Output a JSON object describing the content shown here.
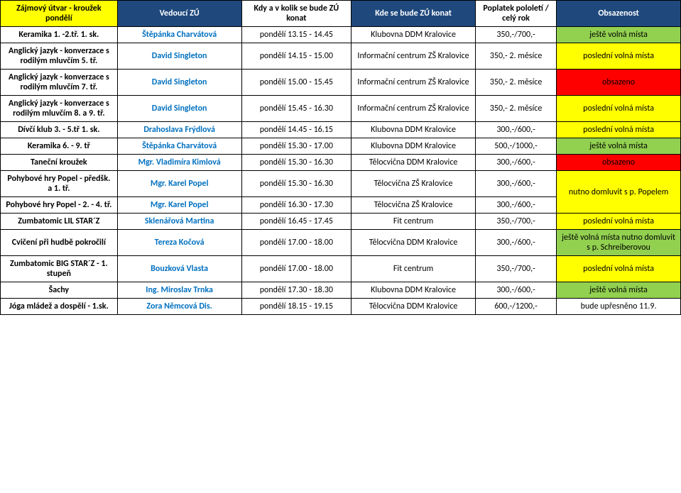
{
  "colors": {
    "yellow": "#ffff00",
    "green": "#92d050",
    "red": "#ff0000",
    "navy": "#1f497d",
    "boldBlue": "#0070c0",
    "black": "#000000",
    "white": "#ffffff"
  },
  "headers": {
    "name": "Zájmový útvar - kroužek pondělí",
    "leader": "Vedoucí ZÚ",
    "when": "Kdy a v kolik se bude ZÚ konat",
    "where": "Kde se bude ZÚ konat",
    "fee": "Poplatek pololetí / celý rok",
    "avail": "Obsazenost"
  },
  "headerStyles": {
    "name": {
      "bg": "#ffff00",
      "color": "#000000",
      "bold": true
    },
    "leader": {
      "bg": "#1f497d",
      "color": "#ffffff",
      "bold": true
    },
    "when": {
      "bg": "#ffffff",
      "color": "#000000",
      "bold": true
    },
    "where": {
      "bg": "#1f497d",
      "color": "#ffffff",
      "bold": true
    },
    "fee": {
      "bg": "#ffffff",
      "color": "#000000",
      "bold": true
    },
    "avail": {
      "bg": "#1f497d",
      "color": "#ffffff",
      "bold": true
    }
  },
  "rows": [
    {
      "name": "Keramika 1. -2.tř. 1. sk.",
      "leader": "Štěpánka Charvátová",
      "when": "pondělí 13.15 - 14.45",
      "where": "Klubovna DDM Kralovice",
      "fee": "350,-/700,-",
      "avail": "ještě volná místa",
      "nameStyle": {
        "bold": true
      },
      "leaderStyle": {
        "color": "#0070c0",
        "bold": true
      },
      "availStyle": {
        "bg": "#92d050"
      },
      "rowspanAvail": 1
    },
    {
      "name": "Anglický jazyk - konverzace s rodilým mluvčím 5. tř.",
      "leader": "David Singleton",
      "when": "pondělí 14.15 - 15.00",
      "where": "Informační centrum ZŠ Kralovice",
      "fee": "350,- 2. měsíce",
      "avail": "poslední volná místa",
      "nameStyle": {
        "bold": true
      },
      "leaderStyle": {
        "color": "#0070c0",
        "bold": true
      },
      "availStyle": {
        "bg": "#ffff00"
      },
      "rowspanAvail": 1
    },
    {
      "name": "Anglický jazyk - konverzace s rodilým mluvčím 7. tř.",
      "leader": "David Singleton",
      "when": "pondělí 15.00 - 15.45",
      "where": "Informační centrum ZŠ Kralovice",
      "fee": "350,- 2. měsíce",
      "avail": "obsazeno",
      "nameStyle": {
        "bold": true
      },
      "leaderStyle": {
        "color": "#0070c0",
        "bold": true
      },
      "availStyle": {
        "bg": "#ff0000"
      },
      "rowspanAvail": 1
    },
    {
      "name": "Anglický jazyk - konverzace s rodilým mluvčím 8. a 9. tř.",
      "leader": "David Singleton",
      "when": "pondělí 15.45 - 16.30",
      "where": "Informační centrum ZŠ Kralovice",
      "fee": "350,- 2. měsíce",
      "avail": "poslední volná místa",
      "nameStyle": {
        "bold": true
      },
      "leaderStyle": {
        "color": "#0070c0",
        "bold": true
      },
      "availStyle": {
        "bg": "#ffff00"
      },
      "rowspanAvail": 1
    },
    {
      "name": "Dívčí klub 3. - 5.tř 1. sk.",
      "leader": "Drahoslava Frýdlová",
      "when": "pondělí 14.45 - 16.15",
      "where": "Klubovna DDM Kralovice",
      "fee": "300,-/600,-",
      "avail": "poslední volná místa",
      "nameStyle": {
        "bold": true
      },
      "leaderStyle": {
        "color": "#0070c0",
        "bold": true
      },
      "availStyle": {
        "bg": "#ffff00"
      },
      "rowspanAvail": 1
    },
    {
      "name": "Keramika 6. - 9. tř",
      "leader": "Štěpánka Charvátová",
      "when": "pondělí 15.30 - 17.00",
      "where": "Klubovna DDM Kralovice",
      "fee": "500,-/1000,-",
      "avail": "ještě volná místa",
      "nameStyle": {
        "bold": true
      },
      "leaderStyle": {
        "color": "#0070c0",
        "bold": true
      },
      "availStyle": {
        "bg": "#92d050"
      },
      "rowspanAvail": 1
    },
    {
      "name": "Taneční kroužek",
      "leader": "Mgr. Vladimíra Kimlová",
      "when": "pondělí 15.30 - 16.30",
      "where": "Tělocvična DDM Kralovice",
      "fee": "300,-/600,-",
      "avail": "obsazeno",
      "nameStyle": {
        "bold": true
      },
      "leaderStyle": {
        "color": "#0070c0",
        "bold": true
      },
      "availStyle": {
        "bg": "#ff0000"
      },
      "rowspanAvail": 1
    },
    {
      "name": "Pohybové hry Popel - předšk. a 1. tř.",
      "leader": "Mgr. Karel Popel",
      "when": "pondělí 15.30 - 16.30",
      "where": "Tělocvična ZŠ Kralovice",
      "fee": "300,-/600,-",
      "avail": "nutno domluvit s  p. Popelem",
      "nameStyle": {
        "bold": true
      },
      "leaderStyle": {
        "color": "#0070c0",
        "bold": true
      },
      "availStyle": {
        "bg": "#ffff00"
      },
      "rowspanAvail": 2
    },
    {
      "name": "Pohybové hry Popel - 2. - 4. tř.",
      "leader": "Mgr. Karel Popel",
      "when": "pondělí 16.30 - 17.30",
      "where": "Tělocvična ZŠ Kralovice",
      "fee": "300,-/600,-",
      "avail": null,
      "nameStyle": {
        "bold": true
      },
      "leaderStyle": {
        "color": "#0070c0",
        "bold": true
      },
      "availStyle": null,
      "rowspanAvail": 0
    },
    {
      "name": "Zumbatomic LIL STAR´Z",
      "leader": "Sklenářová Martina",
      "when": "pondělí 16.45 - 17.45",
      "where": "Fit centrum",
      "fee": "350,-/700,-",
      "avail": "poslední volná místa",
      "nameStyle": {
        "bold": true
      },
      "leaderStyle": {
        "color": "#0070c0",
        "bold": true
      },
      "availStyle": {
        "bg": "#ffff00"
      },
      "rowspanAvail": 1
    },
    {
      "name": "Cvičení při hudbě pokročilí",
      "leader": "Tereza Kočová",
      "when": "pondělí 17.00 - 18.00",
      "where": "Tělocvična DDM Kralovice",
      "fee": "300,-/600,-",
      "avail": "ještě volná místa nutno domluvit s  p. Schreiberovou",
      "nameStyle": {
        "bold": true
      },
      "leaderStyle": {
        "color": "#0070c0",
        "bold": true
      },
      "availStyle": {
        "bg": "#92d050"
      },
      "rowspanAvail": 1
    },
    {
      "name": "Zumbatomic BIG STAR´Z - 1. stupeň",
      "leader": "Bouzková Vlasta",
      "when": "pondělí 17.00 - 18.00",
      "where": "Fit centrum",
      "fee": "350,-/700,-",
      "avail": "poslední volná místa",
      "nameStyle": {
        "bold": true
      },
      "leaderStyle": {
        "color": "#0070c0",
        "bold": true
      },
      "availStyle": {
        "bg": "#ffff00"
      },
      "rowspanAvail": 1
    },
    {
      "name": "Šachy",
      "leader": "Ing. Miroslav Trnka",
      "when": "pondělí 17.30 - 18.30",
      "where": "Klubovna DDM Kralovice",
      "fee": "300,-/600,-",
      "avail": "ještě volná místa",
      "nameStyle": {
        "bold": true
      },
      "leaderStyle": {
        "color": "#0070c0",
        "bold": true
      },
      "availStyle": {
        "bg": "#92d050"
      },
      "rowspanAvail": 1
    },
    {
      "name": "Jóga mládež a dospělí - 1.sk.",
      "leader": "Zora Němcová Dis.",
      "when": "pondělí 18.15 - 19.15",
      "where": "Tělocvična DDM Kralovice",
      "fee": "600,-/1200,-",
      "avail": "bude upřesněno 11.9.",
      "nameStyle": {
        "bold": true
      },
      "leaderStyle": {
        "color": "#0070c0",
        "bold": true
      },
      "availStyle": {
        "bg": "#ffffff"
      },
      "rowspanAvail": 1
    }
  ]
}
